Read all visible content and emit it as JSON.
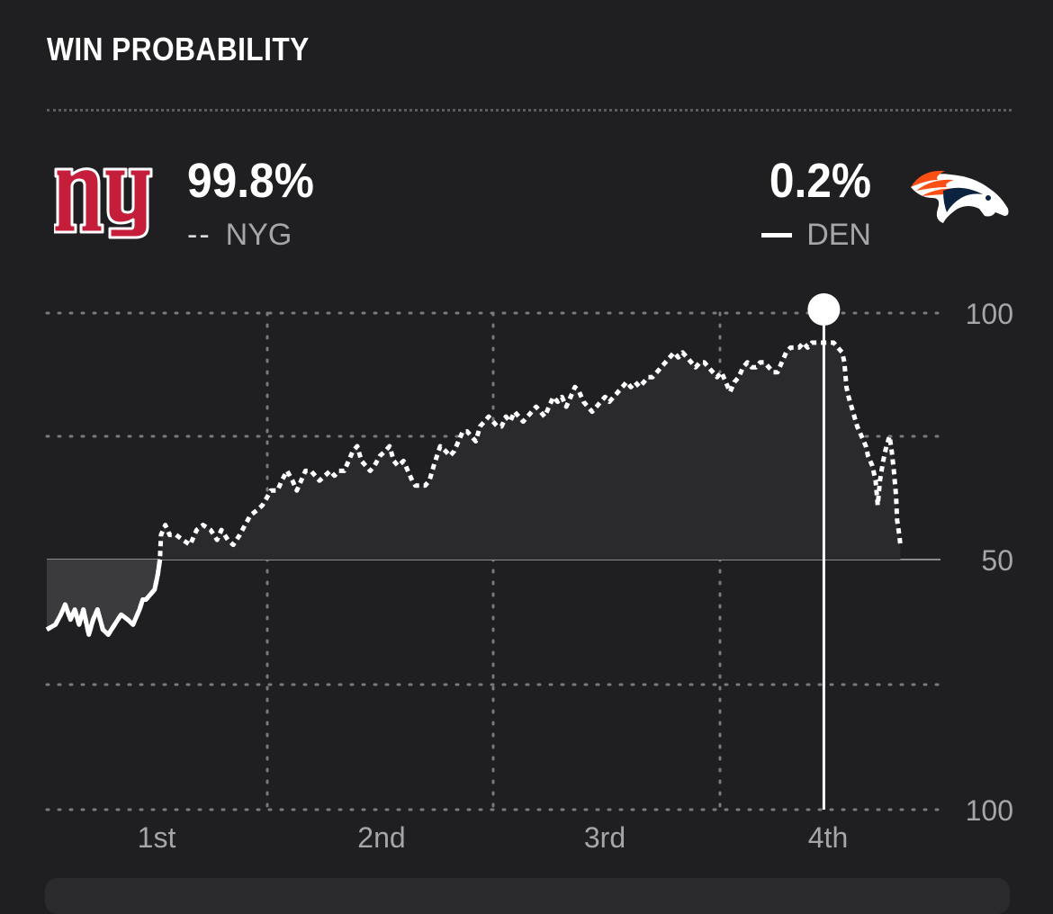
{
  "header": {
    "title": "WIN PROBABILITY"
  },
  "teams": {
    "home": {
      "abbr": "NYG",
      "pct": "99.8%",
      "key": "--",
      "logo": "giants-ny-logo",
      "color": "#c41e3a"
    },
    "away": {
      "abbr": "DEN",
      "pct": "0.2%",
      "logo": "broncos-logo",
      "color": "#fb4f14"
    }
  },
  "colors": {
    "background": "#1f1f21",
    "line": "#ffffff",
    "grid": "#7a7a7e",
    "label": "#a5a5aa"
  },
  "chart_data": {
    "type": "line",
    "y_tick_labels": [
      "100",
      "50",
      "100"
    ],
    "x_tick_labels": [
      "1st",
      "2nd",
      "3rd",
      "4th"
    ],
    "y_range": [
      -100,
      100
    ],
    "center_value": 50,
    "grid": "dotted",
    "series": [
      {
        "name": "NYG",
        "style": "dashed",
        "points": [
          [
            0,
            -28
          ],
          [
            0.8,
            -26
          ],
          [
            1.3,
            -22
          ],
          [
            1.7,
            -18
          ],
          [
            2.2,
            -24
          ],
          [
            2.6,
            -20
          ],
          [
            3.0,
            -26
          ],
          [
            3.4,
            -20
          ],
          [
            3.9,
            -30
          ],
          [
            4.3,
            -24
          ],
          [
            4.7,
            -20
          ],
          [
            5.2,
            -28
          ],
          [
            5.7,
            -30
          ],
          [
            6.3,
            -26
          ],
          [
            6.9,
            -22
          ],
          [
            7.5,
            -24
          ],
          [
            8.0,
            -26
          ],
          [
            8.6,
            -20
          ],
          [
            8.9,
            -16
          ],
          [
            9.2,
            -16
          ],
          [
            9.6,
            -14
          ],
          [
            10.0,
            -12
          ],
          [
            10.3,
            -6
          ],
          [
            10.5,
            0
          ],
          [
            10.6,
            10
          ],
          [
            11.0,
            14
          ],
          [
            11.4,
            10
          ],
          [
            12.0,
            10
          ],
          [
            12.6,
            8
          ],
          [
            13.3,
            6
          ],
          [
            13.9,
            12
          ],
          [
            14.5,
            14
          ],
          [
            15.2,
            12
          ],
          [
            15.8,
            8
          ],
          [
            16.2,
            12
          ],
          [
            16.8,
            8
          ],
          [
            17.3,
            6
          ],
          [
            17.9,
            10
          ],
          [
            18.4,
            14
          ],
          [
            18.9,
            18
          ],
          [
            19.5,
            20
          ],
          [
            20.0,
            22
          ],
          [
            20.8,
            28
          ],
          [
            21.4,
            28
          ],
          [
            21.8,
            32
          ],
          [
            22.3,
            36
          ],
          [
            22.8,
            32
          ],
          [
            23.2,
            28
          ],
          [
            23.6,
            32
          ],
          [
            24.0,
            36
          ],
          [
            24.5,
            36
          ],
          [
            24.9,
            34
          ],
          [
            25.3,
            32
          ],
          [
            25.8,
            34
          ],
          [
            26.3,
            36
          ],
          [
            26.7,
            34
          ],
          [
            27.1,
            36
          ],
          [
            27.6,
            36
          ],
          [
            28.0,
            40
          ],
          [
            28.4,
            44
          ],
          [
            28.8,
            46
          ],
          [
            29.2,
            40
          ],
          [
            29.6,
            38
          ],
          [
            30.0,
            36
          ],
          [
            30.4,
            38
          ],
          [
            30.9,
            42
          ],
          [
            31.4,
            44
          ],
          [
            31.8,
            46
          ],
          [
            32.2,
            40
          ],
          [
            32.6,
            38
          ],
          [
            33.1,
            40
          ],
          [
            33.5,
            36
          ],
          [
            33.9,
            32
          ],
          [
            34.2,
            30
          ],
          [
            34.6,
            30
          ],
          [
            35.1,
            30
          ],
          [
            35.5,
            32
          ],
          [
            35.9,
            38
          ],
          [
            36.2,
            42
          ],
          [
            36.5,
            46
          ],
          [
            37.0,
            44
          ],
          [
            37.4,
            42
          ],
          [
            37.8,
            44
          ],
          [
            38.2,
            48
          ],
          [
            38.6,
            52
          ],
          [
            39.0,
            52
          ],
          [
            39.4,
            50
          ],
          [
            39.8,
            48
          ],
          [
            40.2,
            54
          ],
          [
            40.6,
            56
          ],
          [
            41.0,
            58
          ],
          [
            41.4,
            56
          ],
          [
            41.8,
            54
          ],
          [
            42.2,
            54
          ],
          [
            42.6,
            58
          ],
          [
            43.0,
            56
          ],
          [
            43.4,
            60
          ],
          [
            43.8,
            58
          ],
          [
            44.2,
            56
          ],
          [
            44.6,
            58
          ],
          [
            45.0,
            60
          ],
          [
            45.4,
            62
          ],
          [
            45.8,
            60
          ],
          [
            46.2,
            58
          ],
          [
            46.6,
            62
          ],
          [
            47.0,
            66
          ],
          [
            47.4,
            64
          ],
          [
            47.8,
            66
          ],
          [
            48.2,
            62
          ],
          [
            48.6,
            66
          ],
          [
            49.0,
            70
          ],
          [
            49.4,
            68
          ],
          [
            49.8,
            64
          ],
          [
            50.2,
            62
          ],
          [
            50.6,
            60
          ],
          [
            51.0,
            62
          ],
          [
            51.4,
            64
          ],
          [
            51.8,
            66
          ],
          [
            52.2,
            64
          ],
          [
            52.6,
            66
          ],
          [
            53.0,
            68
          ],
          [
            53.4,
            70
          ],
          [
            53.8,
            72
          ],
          [
            54.2,
            70
          ],
          [
            54.6,
            72
          ],
          [
            55.0,
            70
          ],
          [
            55.4,
            72
          ],
          [
            55.8,
            74
          ],
          [
            56.2,
            74
          ],
          [
            56.6,
            76
          ],
          [
            57.0,
            78
          ],
          [
            57.4,
            80
          ],
          [
            57.8,
            82
          ],
          [
            58.2,
            84
          ],
          [
            58.6,
            82
          ],
          [
            59.0,
            84
          ],
          [
            59.4,
            82
          ],
          [
            59.8,
            80
          ],
          [
            60.2,
            78
          ],
          [
            60.6,
            80
          ],
          [
            61.0,
            80
          ],
          [
            61.4,
            78
          ],
          [
            61.8,
            76
          ],
          [
            62.2,
            74
          ],
          [
            62.6,
            76
          ],
          [
            63.0,
            72
          ],
          [
            63.4,
            68
          ],
          [
            63.8,
            72
          ],
          [
            64.2,
            74
          ],
          [
            64.6,
            78
          ],
          [
            65.0,
            80
          ],
          [
            65.4,
            78
          ],
          [
            65.8,
            78
          ],
          [
            66.2,
            80
          ],
          [
            66.6,
            80
          ],
          [
            67.0,
            78
          ],
          [
            67.4,
            76
          ],
          [
            67.8,
            76
          ],
          [
            68.2,
            80
          ],
          [
            68.6,
            84
          ],
          [
            69.0,
            86
          ],
          [
            69.4,
            86
          ],
          [
            69.8,
            86
          ],
          [
            70.2,
            88
          ],
          [
            70.6,
            86
          ],
          [
            71.0,
            88
          ],
          [
            71.4,
            88
          ],
          [
            71.6,
            88
          ],
          [
            72.6,
            88
          ],
          [
            73.0,
            88
          ],
          [
            73.4,
            86
          ],
          [
            73.8,
            84
          ],
          [
            74.0,
            80
          ],
          [
            74.2,
            70
          ],
          [
            74.4,
            66
          ],
          [
            74.8,
            60
          ],
          [
            75.2,
            54
          ],
          [
            75.6,
            50
          ],
          [
            76.0,
            46
          ],
          [
            76.2,
            42
          ],
          [
            76.6,
            38
          ],
          [
            76.9,
            32
          ],
          [
            77.1,
            22
          ],
          [
            77.3,
            32
          ],
          [
            77.6,
            40
          ],
          [
            77.9,
            46
          ],
          [
            78.2,
            50
          ],
          [
            78.4,
            44
          ],
          [
            78.6,
            36
          ],
          [
            78.8,
            26
          ],
          [
            78.9,
            16
          ],
          [
            79.1,
            10
          ],
          [
            79.2,
            6
          ]
        ]
      },
      {
        "name": "DEN",
        "style": "solid",
        "points": [
          [
            0,
            -28
          ],
          [
            0.8,
            -26
          ],
          [
            1.3,
            -22
          ],
          [
            1.7,
            -18
          ],
          [
            2.2,
            -24
          ],
          [
            2.6,
            -20
          ],
          [
            3.0,
            -26
          ],
          [
            3.4,
            -20
          ],
          [
            3.9,
            -30
          ],
          [
            4.3,
            -24
          ],
          [
            4.7,
            -20
          ],
          [
            5.2,
            -28
          ],
          [
            5.7,
            -30
          ],
          [
            6.3,
            -26
          ],
          [
            6.9,
            -22
          ],
          [
            7.5,
            -24
          ],
          [
            8.0,
            -26
          ],
          [
            8.6,
            -20
          ],
          [
            8.9,
            -16
          ],
          [
            9.2,
            -16
          ],
          [
            9.6,
            -14
          ],
          [
            10.0,
            -12
          ],
          [
            10.3,
            -6
          ],
          [
            10.5,
            0
          ]
        ]
      }
    ],
    "marker_x": 72.1
  }
}
